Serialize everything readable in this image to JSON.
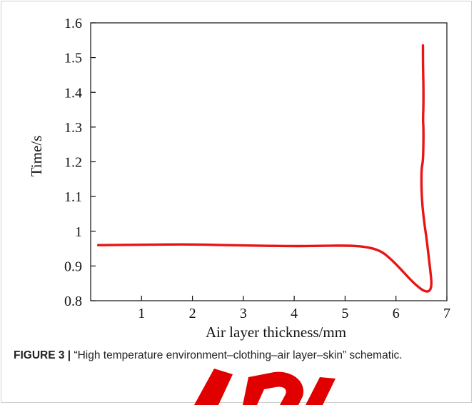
{
  "caption": {
    "label": "FIGURE 3 |",
    "text": "“High temperature environment–clothing–air layer–skin” schematic."
  },
  "colors": {
    "line": "#e81515",
    "axis": "#111111",
    "watermark": "#e00000"
  },
  "chart_data": {
    "type": "line",
    "xlabel": "Air layer thickness/mm",
    "ylabel": "Time/s",
    "xlim": [
      0,
      7
    ],
    "ylim": [
      0.8,
      1.6
    ],
    "xticks": [
      1,
      2,
      3,
      4,
      5,
      6,
      7
    ],
    "yticks": [
      0.8,
      0.9,
      1,
      1.1,
      1.2,
      1.3,
      1.4,
      1.5,
      1.6
    ],
    "ytick_labels": [
      "0.8",
      "0.9",
      "1",
      "1.1",
      "1.2",
      "1.3",
      "1.4",
      "1.5",
      "1.6"
    ],
    "grid": false,
    "series": [
      {
        "points": [
          [
            0.15,
            0.96
          ],
          [
            1.0,
            0.961
          ],
          [
            1.6,
            0.962
          ],
          [
            2.0,
            0.962
          ],
          [
            3.0,
            0.959
          ],
          [
            4.0,
            0.957
          ],
          [
            4.5,
            0.958
          ],
          [
            5.0,
            0.959
          ],
          [
            5.4,
            0.956
          ],
          [
            5.7,
            0.944
          ],
          [
            5.9,
            0.92
          ],
          [
            6.1,
            0.89
          ],
          [
            6.3,
            0.858
          ],
          [
            6.45,
            0.838
          ],
          [
            6.55,
            0.828
          ],
          [
            6.63,
            0.826
          ],
          [
            6.68,
            0.832
          ],
          [
            6.7,
            0.85
          ],
          [
            6.68,
            0.88
          ],
          [
            6.64,
            0.93
          ],
          [
            6.6,
            0.98
          ],
          [
            6.56,
            1.02
          ],
          [
            6.52,
            1.07
          ],
          [
            6.5,
            1.12
          ],
          [
            6.5,
            1.18
          ],
          [
            6.53,
            1.2
          ],
          [
            6.54,
            1.25
          ],
          [
            6.54,
            1.3
          ],
          [
            6.53,
            1.32
          ],
          [
            6.54,
            1.36
          ],
          [
            6.54,
            1.42
          ],
          [
            6.53,
            1.48
          ],
          [
            6.53,
            1.535
          ]
        ]
      }
    ]
  }
}
